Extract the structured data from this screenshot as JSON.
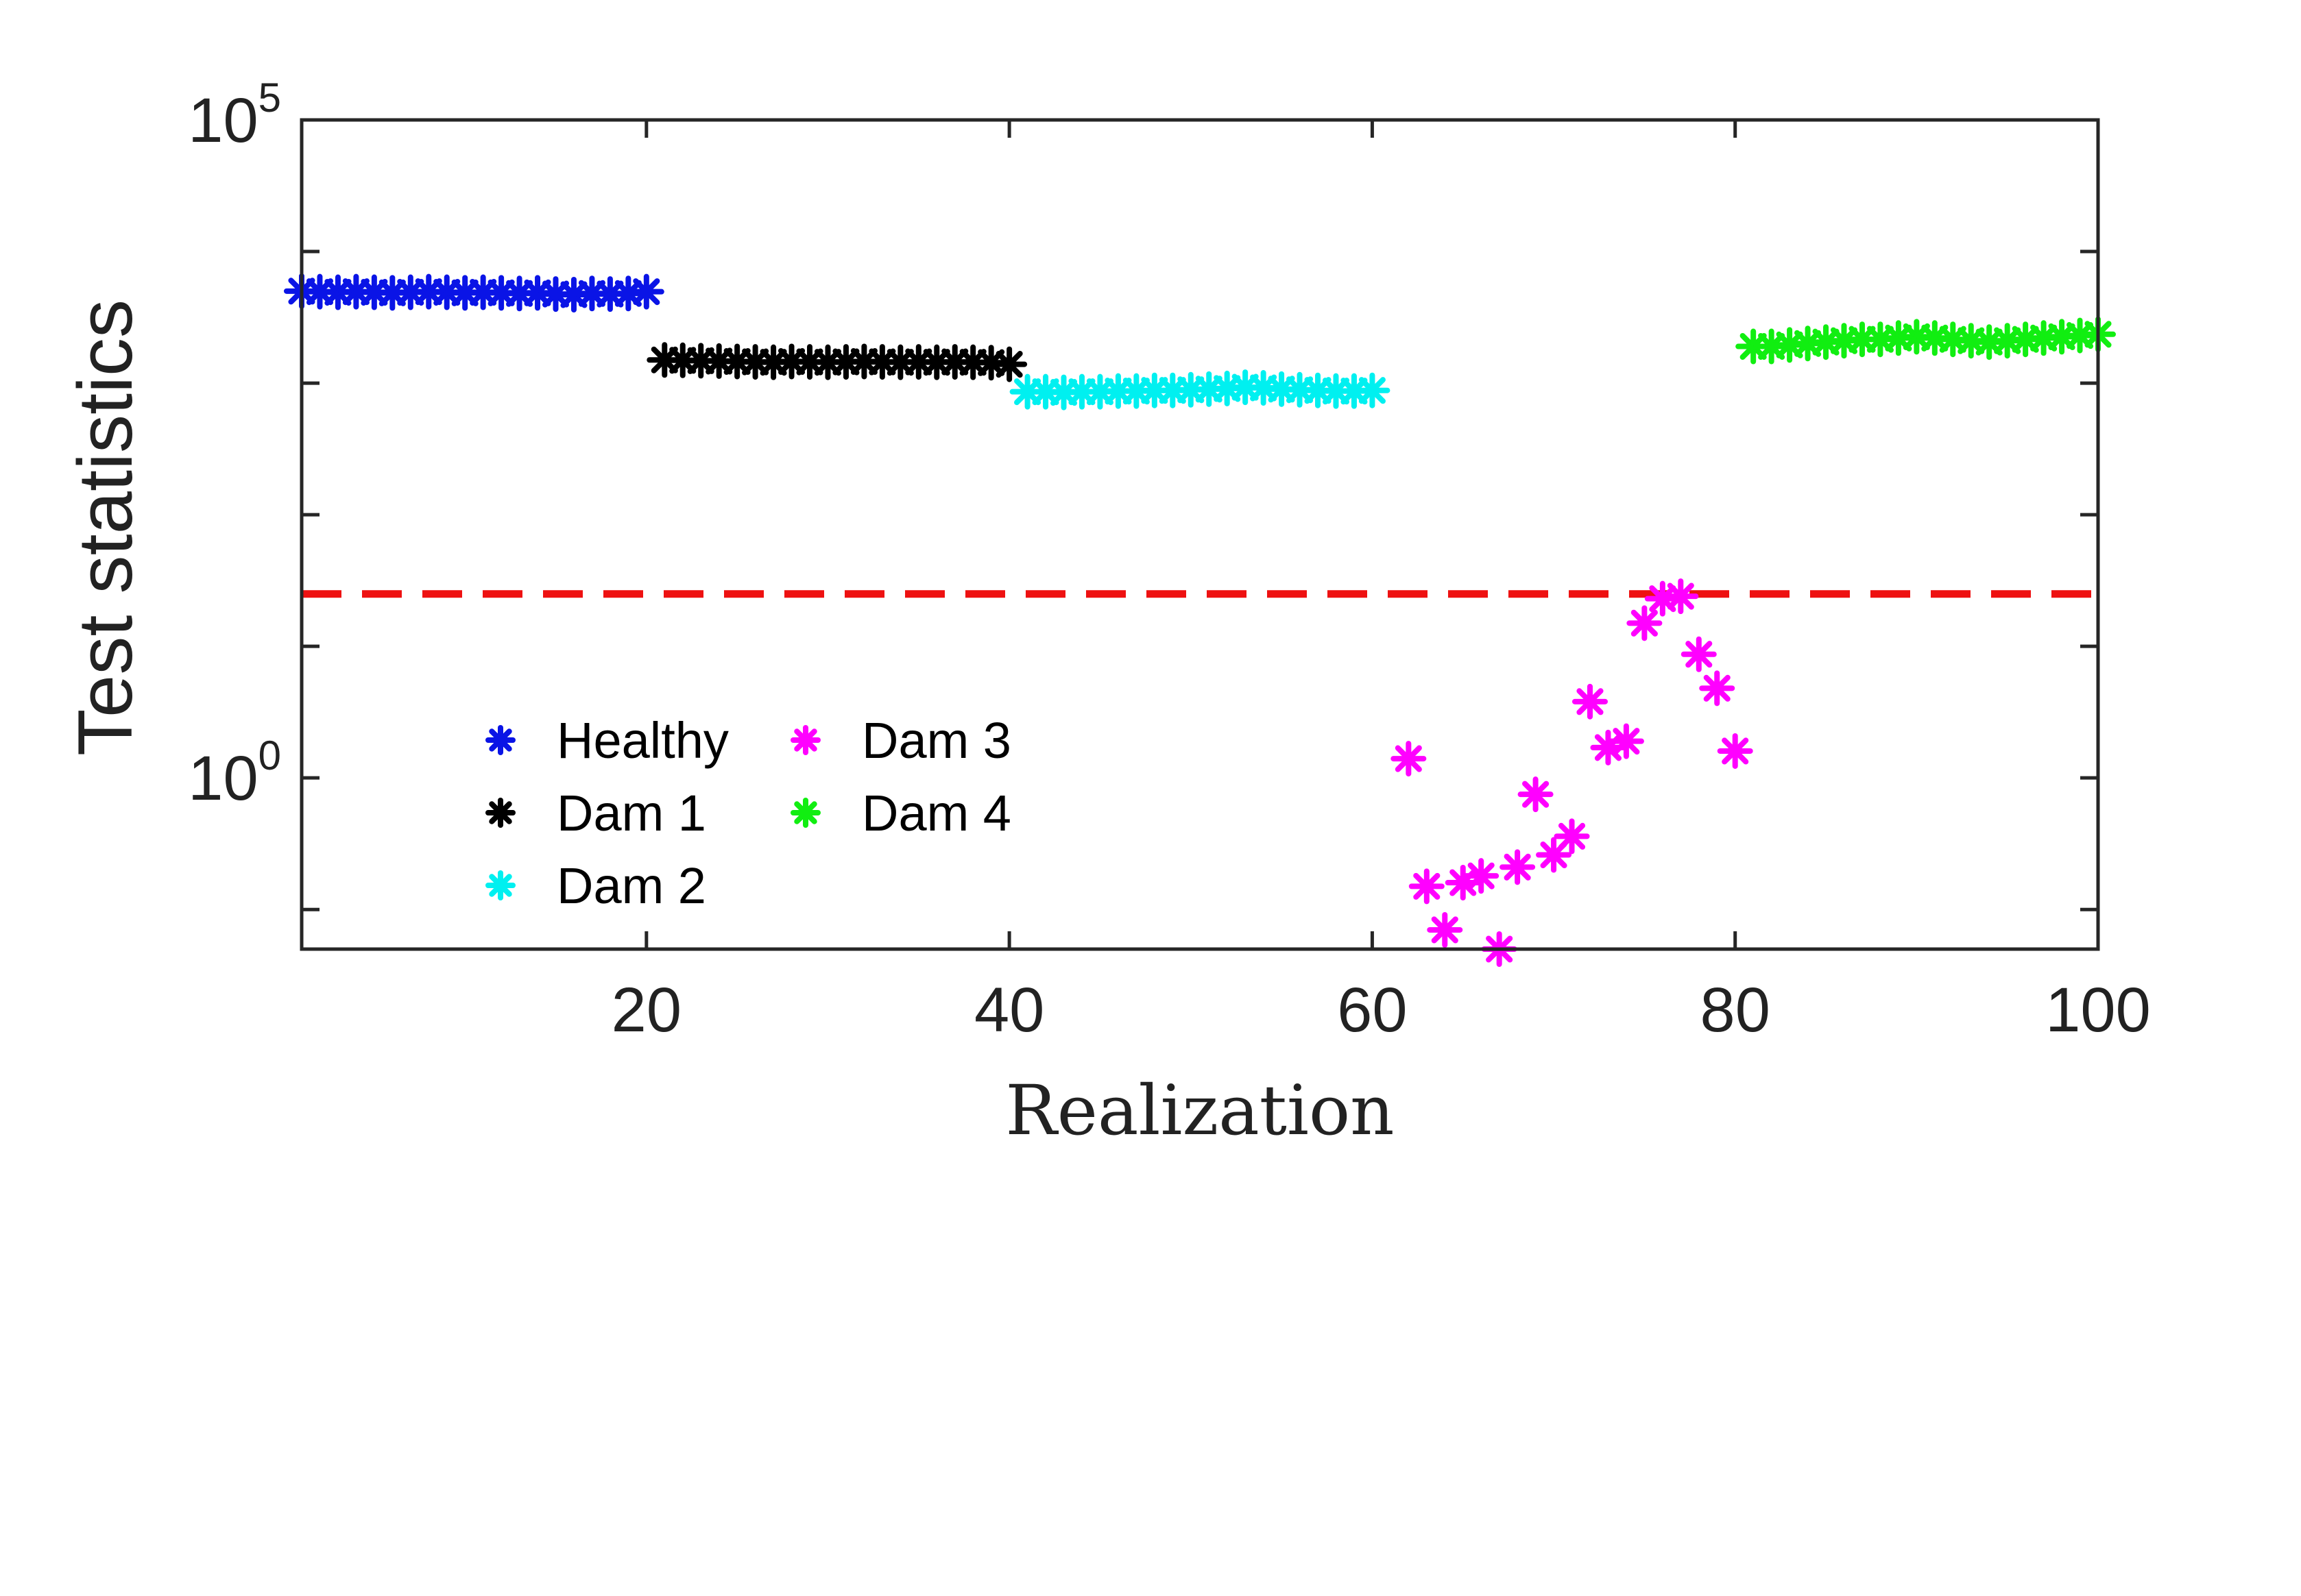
{
  "chart_data": {
    "type": "scatter",
    "title": "",
    "xlabel": "Realization",
    "ylabel": "Test statistics",
    "xlim": [
      1,
      100
    ],
    "ylim": [
      0.05,
      100000
    ],
    "yscale": "log",
    "xticks": [
      20,
      40,
      60,
      80,
      100
    ],
    "xtick_labels": [
      "20",
      "40",
      "60",
      "80",
      "100"
    ],
    "yticks": [
      {
        "value": 1,
        "base": "10",
        "exp": "0"
      },
      {
        "value": 100000,
        "base": "10",
        "exp": "5"
      }
    ],
    "marker": "asterisk",
    "legend_position": "lower-left",
    "threshold": {
      "value": 25,
      "color": "#ee1111",
      "style": "dashed"
    },
    "series": [
      {
        "name": "Healthy",
        "color": "#0a14e6",
        "x": [
          1,
          2,
          3,
          4,
          5,
          6,
          7,
          8,
          9,
          10,
          11,
          12,
          13,
          14,
          15,
          16,
          17,
          18,
          19,
          20
        ],
        "y": [
          5000,
          4950,
          4900,
          4950,
          4900,
          4850,
          4900,
          4950,
          4900,
          4850,
          4900,
          4850,
          4800,
          4850,
          4750,
          4700,
          4800,
          4750,
          4800,
          4950
        ]
      },
      {
        "name": "Dam 1",
        "color": "#000000",
        "x": [
          21,
          22,
          23,
          24,
          25,
          26,
          27,
          28,
          29,
          30,
          31,
          32,
          33,
          34,
          35,
          36,
          37,
          38,
          39,
          40
        ],
        "y": [
          1500,
          1490,
          1480,
          1470,
          1460,
          1450,
          1440,
          1460,
          1450,
          1440,
          1450,
          1460,
          1450,
          1440,
          1450,
          1440,
          1450,
          1440,
          1430,
          1390
        ]
      },
      {
        "name": "Dam 2",
        "color": "#00f0f0",
        "x": [
          41,
          42,
          43,
          44,
          45,
          46,
          47,
          48,
          49,
          50,
          51,
          52,
          53,
          54,
          55,
          56,
          57,
          58,
          59,
          60
        ],
        "y": [
          860,
          860,
          850,
          860,
          860,
          870,
          870,
          880,
          880,
          890,
          900,
          910,
          930,
          920,
          900,
          890,
          880,
          870,
          870,
          880
        ]
      },
      {
        "name": "Dam 3",
        "color": "#ff00ff",
        "x": [
          62,
          63,
          64,
          65,
          66,
          67,
          68,
          69,
          70,
          71,
          72,
          73,
          74,
          75,
          76,
          77,
          78,
          79,
          80
        ],
        "y": [
          1.4,
          0.15,
          0.07,
          0.16,
          0.18,
          0.05,
          0.21,
          0.75,
          0.26,
          0.36,
          3.8,
          1.7,
          1.9,
          15,
          23,
          24,
          8.7,
          4.8,
          1.6
        ]
      },
      {
        "name": "Dam 4",
        "color": "#11ee11",
        "x": [
          81,
          82,
          83,
          84,
          85,
          86,
          87,
          88,
          89,
          90,
          91,
          92,
          93,
          94,
          95,
          96,
          97,
          98,
          99,
          100
        ],
        "y": [
          1900,
          1900,
          1950,
          2000,
          2050,
          2100,
          2150,
          2150,
          2200,
          2250,
          2200,
          2150,
          2100,
          2050,
          2100,
          2150,
          2200,
          2250,
          2300,
          2350
        ]
      }
    ]
  }
}
